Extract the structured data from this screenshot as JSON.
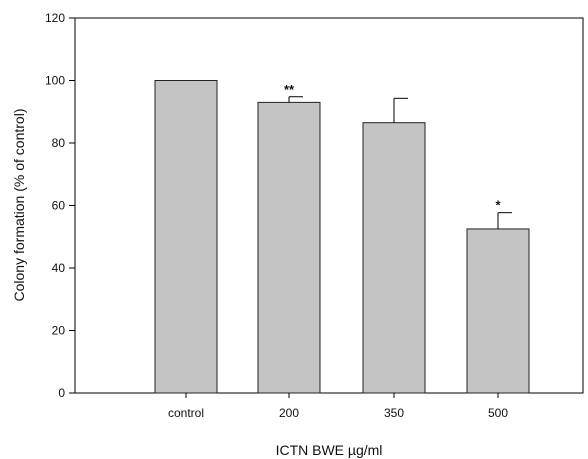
{
  "chart_data": {
    "type": "bar",
    "title": "",
    "xlabel": "ICTN BWE µg/ml",
    "ylabel": "Colony formation (% of control)",
    "categories": [
      "control",
      "200",
      "350",
      "500"
    ],
    "values": [
      100,
      93,
      86.5,
      52.5
    ],
    "error_upper": [
      0,
      1.8,
      7.8,
      5.2
    ],
    "annotations": [
      "",
      "**",
      "",
      "*"
    ],
    "ylim": [
      0,
      120
    ],
    "yticks": [
      0,
      20,
      40,
      60,
      80,
      100,
      120
    ],
    "grid": false,
    "legend": "none",
    "colors": {
      "bar_fill": "#c4c4c4",
      "bar_stroke": "#222222",
      "axis": "#000000"
    }
  }
}
